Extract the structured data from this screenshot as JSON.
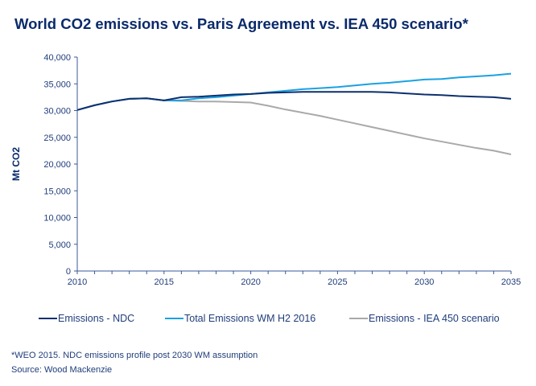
{
  "chart_data": {
    "type": "line",
    "title": "World CO2 emissions vs. Paris Agreement vs. IEA 450 scenario*",
    "xlabel": "",
    "ylabel": "Mt CO2",
    "xlim": [
      2010,
      2035
    ],
    "ylim": [
      0,
      40000
    ],
    "x_ticks": [
      "2010",
      "2015",
      "2020",
      "2025",
      "2030",
      "2035"
    ],
    "y_ticks": [
      "0",
      "5,000",
      "10,000",
      "15,000",
      "20,000",
      "25,000",
      "30,000",
      "35,000",
      "40,000"
    ],
    "grid": false,
    "legend": "bottom",
    "x": [
      2010,
      2011,
      2012,
      2013,
      2014,
      2015,
      2016,
      2017,
      2018,
      2019,
      2020,
      2021,
      2022,
      2023,
      2024,
      2025,
      2026,
      2027,
      2028,
      2029,
      2030,
      2031,
      2032,
      2033,
      2034,
      2035
    ],
    "series": [
      {
        "name": "Emissions - NDC",
        "color": "#0d2f6e",
        "values": [
          30100,
          31000,
          31700,
          32200,
          32300,
          31900,
          32500,
          32600,
          32800,
          33000,
          33100,
          33300,
          33400,
          33500,
          33500,
          33500,
          33500,
          33500,
          33400,
          33200,
          33000,
          32900,
          32700,
          32600,
          32500,
          32200
        ]
      },
      {
        "name": "Total Emissions WM H2 2016",
        "color": "#1ba1e2",
        "values": [
          30100,
          31000,
          31700,
          32200,
          32300,
          31900,
          31900,
          32300,
          32500,
          32800,
          33100,
          33400,
          33700,
          34000,
          34200,
          34400,
          34700,
          35000,
          35200,
          35500,
          35800,
          35900,
          36200,
          36400,
          36600,
          36900
        ]
      },
      {
        "name": "Emissions - IEA 450 scenario",
        "color": "#a9a9a9",
        "values": [
          30100,
          31000,
          31700,
          32200,
          32300,
          31900,
          31800,
          31700,
          31700,
          31600,
          31500,
          30900,
          30200,
          29600,
          29000,
          28300,
          27600,
          26900,
          26200,
          25500,
          24800,
          24200,
          23600,
          23000,
          22500,
          21800
        ]
      }
    ]
  },
  "notes": {
    "footnote": "*WEO 2015. NDC emissions profile post 2030 WM assumption",
    "source": "Source: Wood Mackenzie"
  }
}
